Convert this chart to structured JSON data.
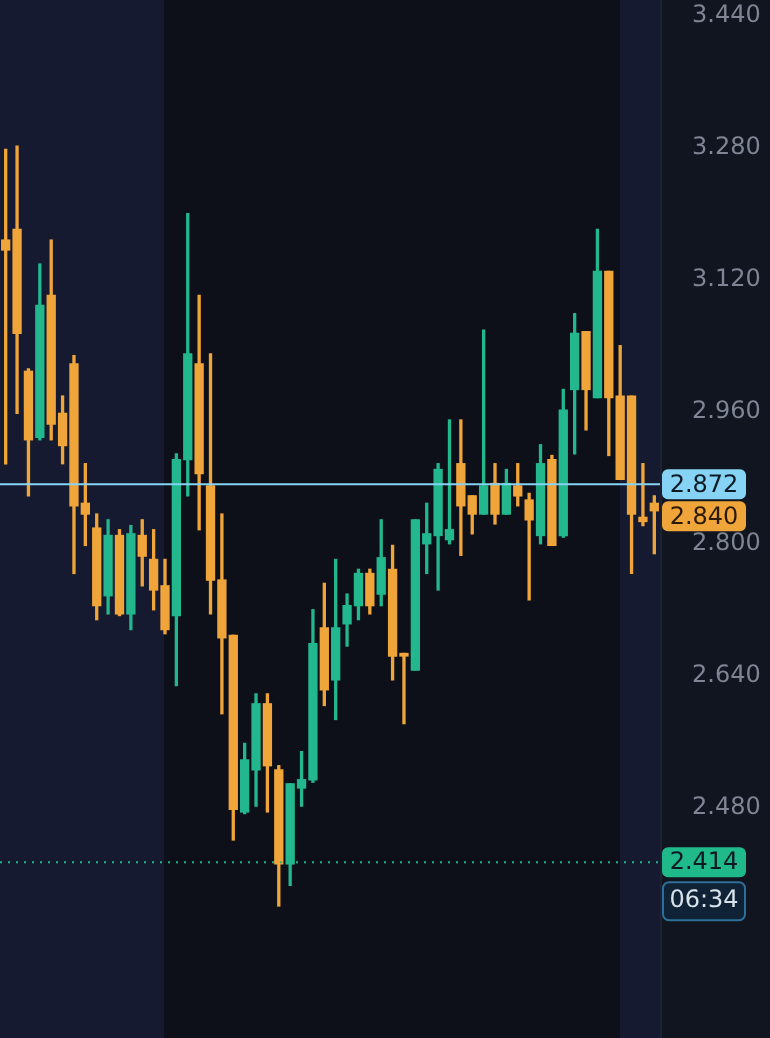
{
  "chart_data": {
    "type": "candlestick",
    "categories": [
      null,
      null,
      null,
      null,
      null,
      null,
      null,
      null,
      null,
      null,
      null,
      null,
      null,
      null,
      null,
      null,
      null,
      null,
      null,
      null,
      null,
      null,
      null,
      null,
      null,
      null,
      null,
      null,
      null,
      null,
      null,
      null,
      null,
      null,
      null,
      null,
      null,
      null,
      null,
      null,
      null,
      null,
      null,
      null,
      null,
      null,
      null,
      null,
      null,
      null,
      null,
      null,
      null,
      null,
      null,
      null,
      null,
      null
    ],
    "ohlc": [
      [
        3.168,
        3.278,
        2.897,
        3.156
      ],
      [
        3.181,
        3.282,
        2.958,
        3.055
      ],
      [
        3.009,
        3.012,
        2.858,
        2.926
      ],
      [
        2.929,
        3.139,
        2.926,
        3.089
      ],
      [
        3.101,
        3.168,
        2.926,
        2.945
      ],
      [
        2.958,
        2.979,
        2.897,
        2.919
      ],
      [
        3.018,
        3.028,
        2.764,
        2.846
      ],
      [
        2.849,
        2.897,
        2.798,
        2.836
      ],
      [
        2.819,
        2.836,
        2.708,
        2.725
      ],
      [
        2.737,
        2.829,
        2.715,
        2.81
      ],
      [
        2.81,
        2.817,
        2.713,
        2.715
      ],
      [
        2.715,
        2.822,
        2.696,
        2.812
      ],
      [
        2.81,
        2.829,
        2.749,
        2.785
      ],
      [
        2.781,
        2.817,
        2.72,
        2.744
      ],
      [
        2.749,
        2.781,
        2.691,
        2.696
      ],
      [
        2.713,
        2.909,
        2.628,
        2.902
      ],
      [
        2.902,
        3.2,
        2.858,
        3.03
      ],
      [
        3.018,
        3.101,
        2.817,
        2.885
      ],
      [
        2.87,
        3.03,
        2.715,
        2.756
      ],
      [
        2.756,
        2.836,
        2.594,
        2.686
      ],
      [
        2.689,
        2.689,
        2.441,
        2.478
      ],
      [
        2.475,
        2.558,
        2.473,
        2.538
      ],
      [
        2.526,
        2.618,
        2.482,
        2.606
      ],
      [
        2.606,
        2.618,
        2.475,
        2.531
      ],
      [
        2.526,
        2.531,
        2.361,
        2.412
      ],
      [
        2.412,
        2.509,
        2.386,
        2.509
      ],
      [
        2.504,
        2.548,
        2.482,
        2.514
      ],
      [
        2.514,
        2.72,
        2.511,
        2.679
      ],
      [
        2.698,
        2.752,
        2.604,
        2.623
      ],
      [
        2.635,
        2.781,
        2.587,
        2.698
      ],
      [
        2.703,
        2.739,
        2.676,
        2.725
      ],
      [
        2.725,
        2.769,
        2.708,
        2.764
      ],
      [
        2.764,
        2.769,
        2.715,
        2.725
      ],
      [
        2.739,
        2.829,
        2.725,
        2.783
      ],
      [
        2.769,
        2.798,
        2.635,
        2.664
      ],
      [
        2.667,
        2.667,
        2.582,
        2.664
      ],
      [
        2.647,
        2.829,
        2.647,
        2.829
      ],
      [
        2.8,
        2.849,
        2.764,
        2.812
      ],
      [
        2.81,
        2.897,
        2.744,
        2.89
      ],
      [
        2.805,
        2.95,
        2.8,
        2.817
      ],
      [
        2.897,
        2.95,
        2.786,
        2.846
      ],
      [
        2.858,
        2.858,
        2.812,
        2.836
      ],
      [
        2.836,
        3.059,
        2.836,
        2.87
      ],
      [
        2.873,
        2.897,
        2.824,
        2.836
      ],
      [
        2.836,
        2.89,
        2.836,
        2.873
      ],
      [
        2.87,
        2.897,
        2.846,
        2.858
      ],
      [
        2.853,
        2.861,
        2.732,
        2.829
      ],
      [
        2.81,
        2.92,
        2.8,
        2.897
      ],
      [
        2.902,
        2.907,
        2.798,
        2.798
      ],
      [
        2.81,
        2.987,
        2.808,
        2.962
      ],
      [
        2.987,
        3.079,
        2.909,
        3.055
      ],
      [
        3.057,
        3.057,
        2.938,
        2.987
      ],
      [
        2.977,
        3.181,
        2.977,
        3.13
      ],
      [
        3.13,
        3.13,
        2.907,
        2.977
      ],
      [
        2.979,
        3.04,
        2.878,
        2.878
      ],
      [
        2.979,
        2.979,
        2.764,
        2.836
      ],
      [
        2.832,
        2.897,
        2.822,
        2.827
      ],
      [
        2.849,
        2.858,
        2.788,
        2.84
      ]
    ],
    "colors": [
      "#f0a53a",
      "#f0a53a",
      "#f0a53a",
      "#22b78c",
      "#f0a53a",
      "#f0a53a",
      "#f0a53a",
      "#f0a53a",
      "#f0a53a",
      "#22b78c",
      "#f0a53a",
      "#22b78c",
      "#f0a53a",
      "#f0a53a",
      "#f0a53a",
      "#22b78c",
      "#22b78c",
      "#f0a53a",
      "#f0a53a",
      "#f0a53a",
      "#f0a53a",
      "#22b78c",
      "#22b78c",
      "#f0a53a",
      "#f0a53a",
      "#22b78c",
      "#22b78c",
      "#22b78c",
      "#f0a53a",
      "#22b78c",
      "#22b78c",
      "#22b78c",
      "#f0a53a",
      "#22b78c",
      "#f0a53a",
      "#f0a53a",
      "#22b78c",
      "#22b78c",
      "#22b78c",
      "#22b78c",
      "#f0a53a",
      "#f0a53a",
      "#22b78c",
      "#f0a53a",
      "#22b78c",
      "#f0a53a",
      "#f0a53a",
      "#22b78c",
      "#f0a53a",
      "#22b78c",
      "#22b78c",
      "#f0a53a",
      "#22b78c",
      "#f0a53a",
      "#f0a53a",
      "#f0a53a",
      "#f0a53a",
      "#f0a53a"
    ],
    "ylim": [
      2.201,
      3.459
    ],
    "yticks": [
      {
        "value": 3.44,
        "label": "3.440"
      },
      {
        "value": 3.28,
        "label": "3.280"
      },
      {
        "value": 3.12,
        "label": "3.120"
      },
      {
        "value": 2.96,
        "label": "2.960"
      },
      {
        "value": 2.8,
        "label": "2.800"
      },
      {
        "value": 2.64,
        "label": "2.640"
      },
      {
        "value": 2.48,
        "label": "2.480"
      }
    ],
    "tick_labels": "y",
    "ref_lines": [
      {
        "axis": "y",
        "value": 2.872,
        "label": "2.872",
        "color": "#86d3f5",
        "line_style": "solid"
      },
      {
        "axis": "y",
        "value": 2.414,
        "label": "2.414",
        "color": "#1fb98a",
        "line_style": "dotted"
      }
    ],
    "annotations": [
      "2.840",
      "06:34"
    ]
  }
}
